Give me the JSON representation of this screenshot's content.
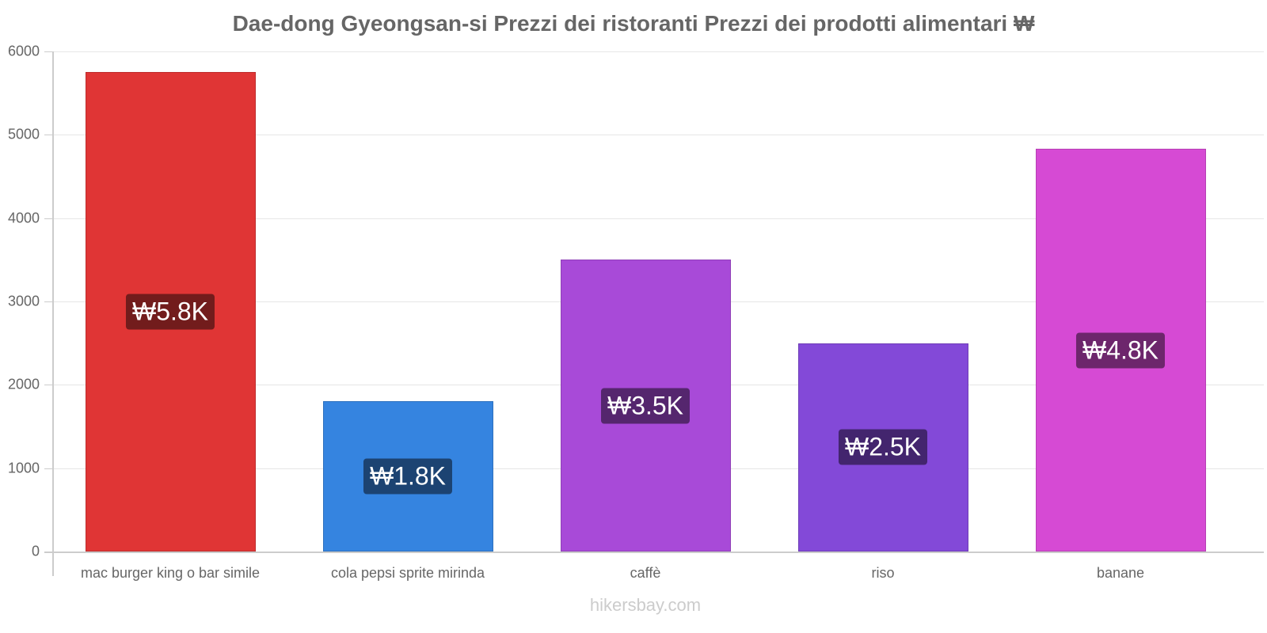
{
  "chart_data": {
    "type": "bar",
    "title": "Dae-dong Gyeongsan-si Prezzi dei ristoranti Prezzi dei prodotti alimentari ₩",
    "xlabel": "",
    "ylabel": "",
    "categories": [
      "mac burger king o bar simile",
      "cola pepsi sprite mirinda",
      "caffè",
      "riso",
      "banane"
    ],
    "values": [
      5750,
      1800,
      3500,
      2500,
      4830
    ],
    "data_labels": [
      "₩5.8K",
      "₩1.8K",
      "₩3.5K",
      "₩2.5K",
      "₩4.8K"
    ],
    "colors": [
      "#e03535",
      "#3584e0",
      "#a84ad8",
      "#8349d8",
      "#d64ad4"
    ],
    "label_bg_colors": [
      "#721c1c",
      "#1c4372",
      "#55266e",
      "#43256e",
      "#6d266c"
    ],
    "ylim": [
      0,
      6000
    ],
    "yticks": [
      0,
      1000,
      2000,
      3000,
      4000,
      5000,
      6000
    ],
    "grid": true,
    "legend": "none"
  },
  "watermark": "hikersbay.com"
}
